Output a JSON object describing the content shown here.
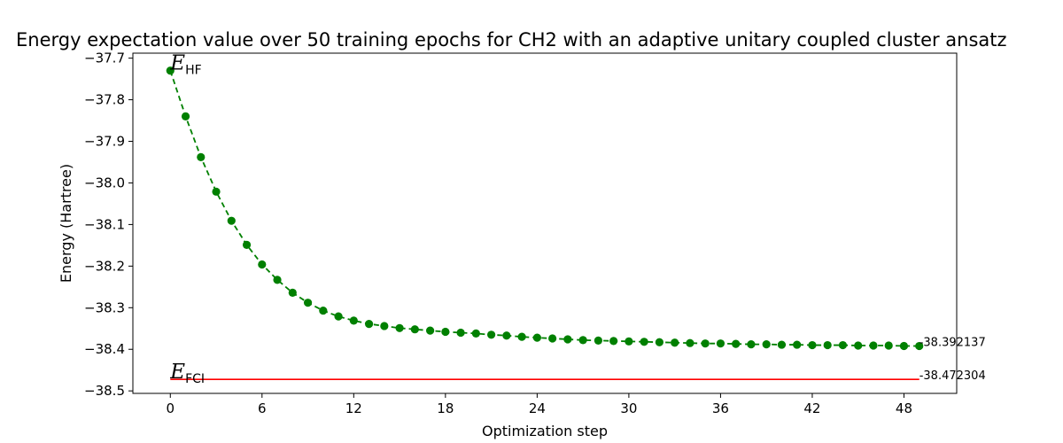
{
  "chart_data": {
    "type": "line",
    "title": "Energy expectation value over 50 training epochs for CH2 with an adaptive unitary coupled cluster ansatz",
    "xlabel": "Optimization step",
    "ylabel": "Energy (Hartree)",
    "xlim": [
      -2.45,
      51.45
    ],
    "ylim": [
      -38.506,
      -37.688
    ],
    "x_ticks": [
      0,
      6,
      12,
      18,
      24,
      30,
      36,
      42,
      48
    ],
    "y_ticks": [
      -37.7,
      -37.8,
      -37.9,
      -38.0,
      -38.1,
      -38.2,
      -38.3,
      -38.4,
      -38.5
    ],
    "x_tick_labels": [
      "0",
      "6",
      "12",
      "18",
      "24",
      "30",
      "36",
      "42",
      "48"
    ],
    "y_tick_labels": [
      "−37.7",
      "−37.8",
      "−37.9",
      "−38.0",
      "−38.1",
      "−38.2",
      "−38.3",
      "−38.4",
      "−38.5"
    ],
    "grid": false,
    "series": [
      {
        "style": "dashed line with circle markers",
        "color": "#008000",
        "x": [
          0,
          1,
          2,
          3,
          4,
          5,
          6,
          7,
          8,
          9,
          10,
          11,
          12,
          13,
          14,
          15,
          16,
          17,
          18,
          19,
          20,
          21,
          22,
          23,
          24,
          25,
          26,
          27,
          28,
          29,
          30,
          31,
          32,
          33,
          34,
          35,
          36,
          37,
          38,
          39,
          40,
          41,
          42,
          43,
          44,
          45,
          46,
          47,
          48,
          49
        ],
        "values": [
          -37.73,
          -37.84,
          -37.938,
          -38.021,
          -38.091,
          -38.149,
          -38.196,
          -38.233,
          -38.264,
          -38.288,
          -38.307,
          -38.321,
          -38.331,
          -38.339,
          -38.344,
          -38.349,
          -38.352,
          -38.355,
          -38.358,
          -38.36,
          -38.362,
          -38.365,
          -38.367,
          -38.37,
          -38.372,
          -38.374,
          -38.376,
          -38.378,
          -38.379,
          -38.38,
          -38.381,
          -38.382,
          -38.383,
          -38.384,
          -38.385,
          -38.386,
          -38.386,
          -38.387,
          -38.388,
          -38.388,
          -38.389,
          -38.389,
          -38.39,
          -38.39,
          -38.39,
          -38.391,
          -38.391,
          -38.391,
          -38.392,
          -38.392137
        ]
      },
      {
        "style": "solid line",
        "color": "#ff0000",
        "x": [
          0,
          49
        ],
        "values": [
          -38.472304,
          -38.472304
        ]
      }
    ],
    "annotations": [
      {
        "text_main": "E",
        "text_sub": "HF",
        "x": 0,
        "y": -37.73
      },
      {
        "text_main": "E",
        "text_sub": "FCI",
        "x": 0,
        "y": -38.472304
      },
      {
        "text": "-38.392137",
        "x": 49,
        "y": -38.392137
      },
      {
        "text": "-38.472304",
        "x": 49,
        "y": -38.472304
      }
    ]
  }
}
